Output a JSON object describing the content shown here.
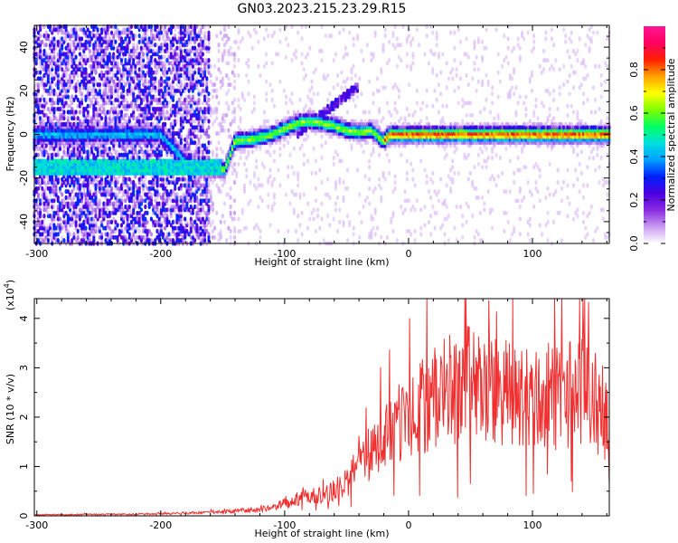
{
  "title": "GN03.2023.215.23.29.R15",
  "chart_data": [
    {
      "type": "heatmap",
      "xlabel": "Height of straight line (km)",
      "ylabel": "Frequency (Hz)",
      "xlim": [
        -302,
        162
      ],
      "ylim": [
        -50,
        50
      ],
      "xticks": [
        -300,
        -200,
        -100,
        0,
        100
      ],
      "yticks": [
        -40,
        -20,
        0,
        20,
        40
      ],
      "colorbar": {
        "label": "Normalized spectral amplitude",
        "range": [
          0.0,
          1.0
        ],
        "ticks": [
          0.0,
          0.2,
          0.4,
          0.6,
          0.8
        ],
        "colors": [
          "#ffffff",
          "#c89bf0",
          "#8a2be2",
          "#4a00e0",
          "#0020ff",
          "#00a0ff",
          "#00e0e0",
          "#00ff60",
          "#80ff00",
          "#ffff00",
          "#ffa000",
          "#ff2000",
          "#ff0060",
          "#ff1493"
        ]
      },
      "ridge": {
        "x": [
          -300,
          -250,
          -200,
          -175,
          -160,
          -148,
          -140,
          -125,
          -110,
          -95,
          -85,
          -75,
          -60,
          -50,
          -40,
          -30,
          -20,
          -15,
          -10,
          0,
          20,
          40,
          60,
          80,
          100,
          120,
          140,
          162
        ],
        "y": [
          0,
          0,
          0,
          -15,
          -16,
          -16,
          -3,
          -2,
          0,
          4,
          6,
          6,
          4,
          2,
          1,
          2,
          -3,
          0,
          0,
          0,
          0,
          0,
          0,
          0,
          0,
          0,
          0,
          0
        ]
      }
    },
    {
      "type": "line",
      "xlabel": "Height of straight line (km)",
      "ylabel": "SNR (10 * v/v)",
      "scale_label": "(x10",
      "scale_exp": "4",
      "scale_close": ")",
      "xlim": [
        -302,
        162
      ],
      "ylim": [
        0,
        4.4
      ],
      "xticks": [
        -300,
        -200,
        -100,
        0,
        100
      ],
      "yticks": [
        0,
        1,
        2,
        3,
        4
      ],
      "color": "#f03030",
      "envelope_x": [
        -302,
        -200,
        -150,
        -110,
        -100,
        -90,
        -80,
        -70,
        -60,
        -50,
        -40,
        -30,
        -20,
        -10,
        0,
        10,
        20,
        30,
        40,
        50,
        60,
        70,
        80,
        90,
        100,
        110,
        120,
        130,
        140,
        150,
        160
      ],
      "envelope_y": [
        0.02,
        0.04,
        0.08,
        0.15,
        0.25,
        0.35,
        0.45,
        0.4,
        0.5,
        0.7,
        1.0,
        1.3,
        1.6,
        1.8,
        2.0,
        2.2,
        2.4,
        2.5,
        2.6,
        2.7,
        2.6,
        2.5,
        2.5,
        2.4,
        2.4,
        2.3,
        2.4,
        2.5,
        2.6,
        2.3,
        2.0
      ]
    }
  ]
}
